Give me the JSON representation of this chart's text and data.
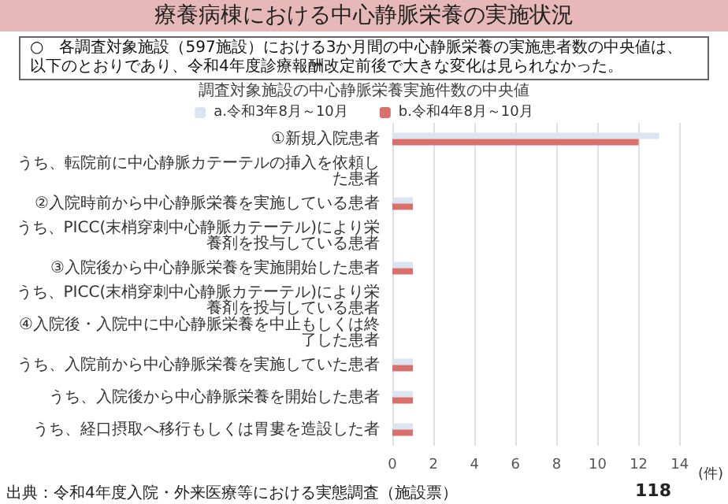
{
  "chart_data": {
    "type": "bar",
    "orientation": "horizontal",
    "title": "療養病棟における中心静脈栄養の実施状況",
    "subtitle": "○　各調査対象施設（597施設）における3か月間の中心静脈栄養の実施患者数の中央値は、以下のとおりであり、令和4年度診療報酬改定前後で大きな変化は見られなかった。",
    "annotations": [
      "調査対象施設の中心静脈栄養実施件数の中央値",
      "出典：令和4年度入院・外来医療等における実態調査（施設票）",
      "118"
    ],
    "categories": [
      "①新規入院患者",
      "うち、転院前に中心静脈カテーテルの挿入を依頼した患者",
      "②入院時前から中心静脈栄養を実施している患者",
      "うち、PICC(末梢穿刺中心静脈カテーテル)により栄養剤を投与している患者",
      "③入院後から中心静脈栄養を実施開始した患者",
      "うち、PICC(末梢穿刺中心静脈カテーテル)により栄養剤を投与している患者",
      "④入院後・入院中に中心静脈栄養を中止もしくは終了した患者",
      "うち、入院前から中心静脈栄養を実施していた患者",
      "うち、入院後から中心静脈栄養を開始した患者",
      "うち、経口摂取へ移行もしくは胃婁を造設した者"
    ],
    "series": [
      {
        "name": "a.令和3年8月～10月",
        "color": "#dbe5f1",
        "values": [
          13,
          0,
          1,
          0,
          1,
          0,
          0,
          1,
          1,
          1
        ]
      },
      {
        "name": "b.令和4年8月～10月",
        "color": "#d9706b",
        "values": [
          12,
          0,
          1,
          0,
          1,
          0,
          0,
          1,
          1,
          1
        ]
      }
    ],
    "xlim": [
      0,
      14
    ],
    "xticks": [
      0,
      2,
      4,
      6,
      8,
      10,
      12,
      14
    ],
    "xlabel": "(件)",
    "grid": "x",
    "legend": "top"
  }
}
